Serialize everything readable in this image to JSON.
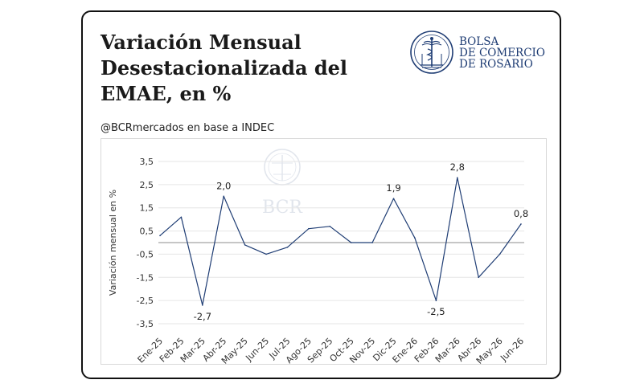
{
  "header": {
    "title": "Variación Mensual Desestacionalizada del EMAE, en %",
    "source": "@BCRmercados en base a INDEC"
  },
  "logo": {
    "lines": [
      "BOLSA",
      "DE COMERCIO",
      "DE ROSARIO"
    ],
    "watermark": "BCR",
    "color": "#1f3d74"
  },
  "chart_data": {
    "type": "line",
    "title": "Variación Mensual Desestacionalizada del EMAE, en %",
    "xlabel": "",
    "ylabel": "Variación mensual en %",
    "categories": [
      "Ene-25",
      "Feb-25",
      "Mar-25",
      "Abr-25",
      "May-25",
      "Jun-25",
      "Jul-25",
      "Ago-25",
      "Sep-25",
      "Oct-25",
      "Nov-25",
      "Dic-25",
      "Ene-26",
      "Feb-26",
      "Mar-26",
      "Abr-26",
      "May-26",
      "Jun-26"
    ],
    "series": [
      {
        "values": [
          0.3,
          1.1,
          -2.7,
          2.0,
          -0.1,
          -0.5,
          -0.2,
          0.6,
          0.7,
          0.0,
          0.0,
          1.9,
          0.2,
          -2.5,
          2.8,
          -1.5,
          -0.5,
          0.8
        ],
        "color": "#1f3d74"
      }
    ],
    "data_labels": [
      {
        "index": 2,
        "text": "-2,7",
        "position": "below"
      },
      {
        "index": 3,
        "text": "2,0",
        "position": "above"
      },
      {
        "index": 11,
        "text": "1,9",
        "position": "above"
      },
      {
        "index": 13,
        "text": "-2,5",
        "position": "below"
      },
      {
        "index": 14,
        "text": "2,8",
        "position": "above"
      },
      {
        "index": 17,
        "text": "0,8",
        "position": "above"
      }
    ],
    "yticks": [
      3.5,
      2.5,
      1.5,
      0.5,
      -0.5,
      -1.5,
      -2.5,
      -3.5
    ],
    "ytick_labels": [
      "3,5",
      "2,5",
      "1,5",
      "0,5",
      "-0,5",
      "-1,5",
      "-2,5",
      "-3,5"
    ],
    "ylim": [
      -3.5,
      3.5
    ],
    "grid": true,
    "legend": "none"
  }
}
